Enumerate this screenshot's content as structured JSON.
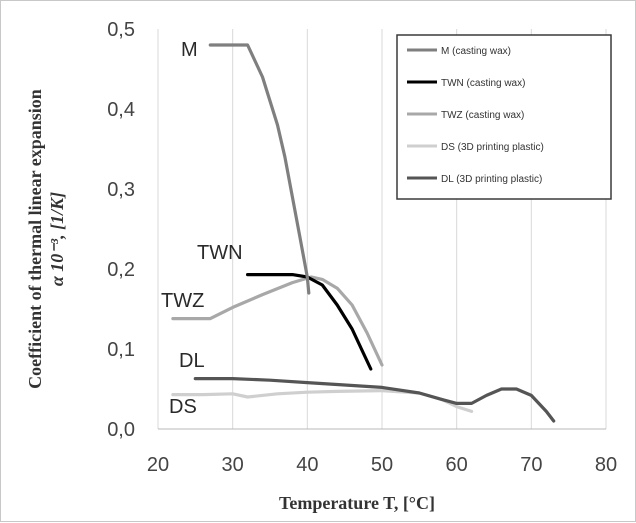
{
  "chart_data": {
    "type": "line",
    "xlabel": "Temperature T, [°C]",
    "ylabel_line1": "Coefficient of thermal linear expansion",
    "ylabel_line2": "α 10⁻³, [1/K]",
    "xlim": [
      20,
      80
    ],
    "ylim": [
      0,
      0.5
    ],
    "x_ticks": [
      "20",
      "30",
      "40",
      "50",
      "60",
      "70",
      "80"
    ],
    "y_ticks": [
      "0,0",
      "0,1",
      "0,2",
      "0,3",
      "0,4",
      "0,5"
    ],
    "grid": "vertical",
    "legend_position": "top-right",
    "series": [
      {
        "name": "M (casting wax)",
        "label": "M",
        "color": "#7f7f7f",
        "x": [
          27,
          32,
          34,
          36,
          37,
          38,
          39,
          40,
          40.2
        ],
        "y": [
          0.48,
          0.48,
          0.44,
          0.38,
          0.34,
          0.29,
          0.24,
          0.19,
          0.17
        ]
      },
      {
        "name": "TWN (casting wax)",
        "label": "TWN",
        "color": "#000000",
        "x": [
          32,
          36,
          38,
          40,
          42,
          44,
          46,
          47.5,
          48.5
        ],
        "y": [
          0.193,
          0.193,
          0.193,
          0.19,
          0.18,
          0.155,
          0.125,
          0.095,
          0.075
        ]
      },
      {
        "name": "TWZ (casting wax)",
        "label": "TWZ",
        "color": "#a8a8a8",
        "x": [
          22,
          27,
          30,
          34,
          38,
          40.5,
          42,
          44,
          46,
          48,
          50
        ],
        "y": [
          0.138,
          0.138,
          0.152,
          0.168,
          0.183,
          0.19,
          0.187,
          0.176,
          0.155,
          0.12,
          0.08
        ]
      },
      {
        "name": "DS (3D printing plastic)",
        "label": "DS",
        "color": "#cfcfcf",
        "x": [
          22,
          26,
          30,
          32,
          36,
          40,
          44,
          50,
          55,
          58,
          60,
          62
        ],
        "y": [
          0.043,
          0.043,
          0.044,
          0.04,
          0.044,
          0.046,
          0.047,
          0.048,
          0.045,
          0.037,
          0.028,
          0.022
        ]
      },
      {
        "name": "DL (3D printing plastic)",
        "label": "DL",
        "color": "#555555",
        "x": [
          25,
          30,
          35,
          40,
          45,
          50,
          55,
          58,
          60,
          62,
          64,
          66,
          68,
          70,
          72,
          73
        ],
        "y": [
          0.063,
          0.063,
          0.061,
          0.058,
          0.055,
          0.052,
          0.045,
          0.037,
          0.032,
          0.032,
          0.042,
          0.05,
          0.05,
          0.042,
          0.022,
          0.01
        ]
      }
    ]
  }
}
